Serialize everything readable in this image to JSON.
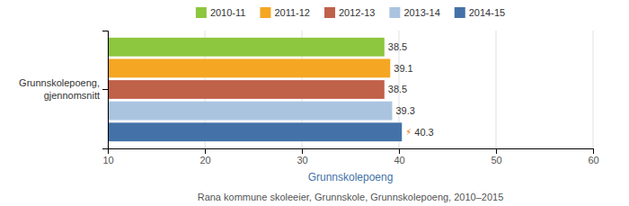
{
  "chart_data": {
    "type": "bar",
    "orientation": "horizontal",
    "categories": [
      "Grunnskolepoeng,\ngjennomsnitt"
    ],
    "series": [
      {
        "name": "2010-11",
        "color": "#8dc63f",
        "values": [
          38.5
        ]
      },
      {
        "name": "2011-12",
        "color": "#f5a623",
        "values": [
          39.1
        ]
      },
      {
        "name": "2012-13",
        "color": "#c0614a",
        "values": [
          38.5
        ]
      },
      {
        "name": "2013-14",
        "color": "#aac4e0",
        "values": [
          39.3
        ]
      },
      {
        "name": "2014-15",
        "color": "#4472a8",
        "values": [
          40.3
        ]
      }
    ],
    "xlim": [
      10,
      60
    ],
    "xticks": [
      10,
      20,
      30,
      40,
      50,
      60
    ],
    "xlabel": "Grunnskolepoeng",
    "annotations": [
      {
        "text": "⚡",
        "color": "#e87722"
      }
    ],
    "footnote": "Rana kommune skoleeier, Grunnskole, Grunnskolepoeng, 2010–2015",
    "grid": true,
    "legend": "top",
    "data_labels": true
  }
}
